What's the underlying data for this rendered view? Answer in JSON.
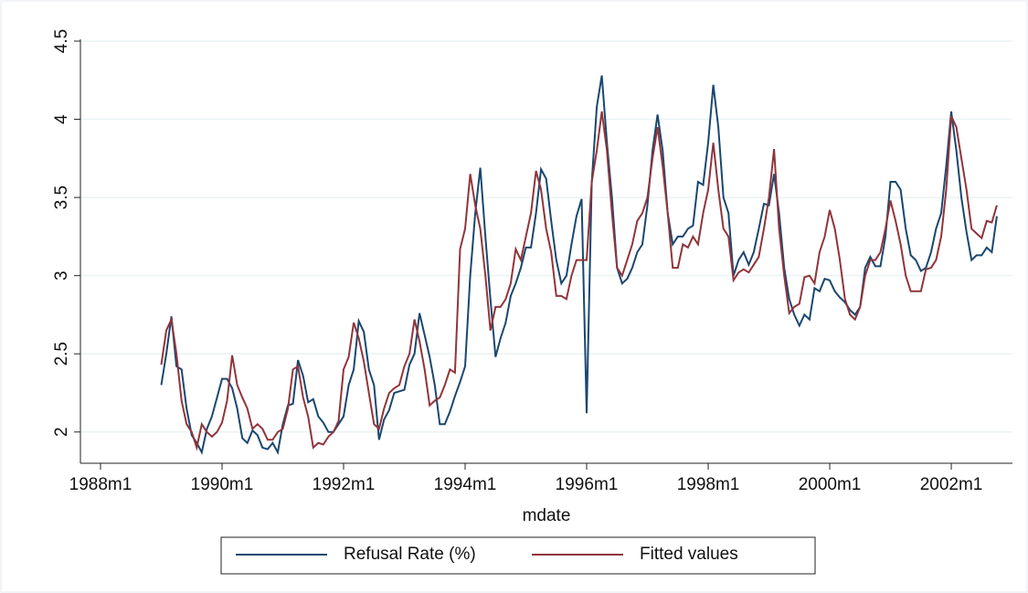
{
  "chart_data": {
    "type": "line",
    "xlabel": "mdate",
    "x": [
      "1989m1",
      "1989m2",
      "1989m3",
      "1989m4",
      "1989m5",
      "1989m6",
      "1989m7",
      "1989m8",
      "1989m9",
      "1989m10",
      "1989m11",
      "1989m12",
      "1990m1",
      "1990m2",
      "1990m3",
      "1990m4",
      "1990m5",
      "1990m6",
      "1990m7",
      "1990m8",
      "1990m9",
      "1990m10",
      "1990m11",
      "1990m12",
      "1991m1",
      "1991m2",
      "1991m3",
      "1991m4",
      "1991m5",
      "1991m6",
      "1991m7",
      "1991m8",
      "1991m9",
      "1991m10",
      "1991m11",
      "1991m12",
      "1992m1",
      "1992m2",
      "1992m3",
      "1992m4",
      "1992m5",
      "1992m6",
      "1992m7",
      "1992m8",
      "1992m9",
      "1992m10",
      "1992m11",
      "1992m12",
      "1993m1",
      "1993m2",
      "1993m3",
      "1993m4",
      "1993m5",
      "1993m6",
      "1993m7",
      "1993m8",
      "1993m9",
      "1993m10",
      "1993m11",
      "1993m12",
      "1994m1",
      "1994m2",
      "1994m3",
      "1994m4",
      "1994m5",
      "1994m6",
      "1994m7",
      "1994m8",
      "1994m9",
      "1994m10",
      "1994m11",
      "1994m12",
      "1995m1",
      "1995m2",
      "1995m3",
      "1995m4",
      "1995m5",
      "1995m6",
      "1995m7",
      "1995m8",
      "1995m9",
      "1995m10",
      "1995m11",
      "1995m12",
      "1996m1",
      "1996m2",
      "1996m3",
      "1996m4",
      "1996m5",
      "1996m6",
      "1996m7",
      "1996m8",
      "1996m9",
      "1996m10",
      "1996m11",
      "1996m12",
      "1997m1",
      "1997m2",
      "1997m3",
      "1997m4",
      "1997m5",
      "1997m6",
      "1997m7",
      "1997m8",
      "1997m9",
      "1997m10",
      "1997m11",
      "1997m12",
      "1998m1",
      "1998m2",
      "1998m3",
      "1998m4",
      "1998m5",
      "1998m6",
      "1998m7",
      "1998m8",
      "1998m9",
      "1998m10",
      "1998m11",
      "1998m12",
      "1999m1",
      "1999m2",
      "1999m3",
      "1999m4",
      "1999m5",
      "1999m6",
      "1999m7",
      "1999m8",
      "1999m9",
      "1999m10",
      "1999m11",
      "1999m12",
      "2000m1",
      "2000m2",
      "2000m3",
      "2000m4",
      "2000m5",
      "2000m6",
      "2000m7",
      "2000m8",
      "2000m9",
      "2000m10",
      "2000m11",
      "2000m12",
      "2001m1",
      "2001m2",
      "2001m3",
      "2001m4",
      "2001m5",
      "2001m6",
      "2001m7",
      "2001m8",
      "2001m9",
      "2001m10",
      "2001m11",
      "2001m12",
      "2002m1",
      "2002m2",
      "2002m3",
      "2002m4",
      "2002m5",
      "2002m6",
      "2002m7",
      "2002m8",
      "2002m9",
      "2002m10"
    ],
    "series": [
      {
        "name": "Refusal Rate (%)",
        "color": "#1a476f",
        "values": [
          2.3,
          2.5,
          2.74,
          2.42,
          2.4,
          2.15,
          1.98,
          1.93,
          1.87,
          2.02,
          2.1,
          2.22,
          2.34,
          2.34,
          2.28,
          2.15,
          1.96,
          1.93,
          2.01,
          1.98,
          1.9,
          1.89,
          1.93,
          1.87,
          2.05,
          2.17,
          2.18,
          2.46,
          2.36,
          2.19,
          2.21,
          2.1,
          2.06,
          2.0,
          2.0,
          2.05,
          2.1,
          2.3,
          2.4,
          2.71,
          2.64,
          2.4,
          2.3,
          1.95,
          2.08,
          2.14,
          2.25,
          2.26,
          2.27,
          2.43,
          2.5,
          2.76,
          2.62,
          2.48,
          2.3,
          2.05,
          2.05,
          2.13,
          2.23,
          2.32,
          2.42,
          3.0,
          3.4,
          3.69,
          3.25,
          2.85,
          2.48,
          2.6,
          2.7,
          2.87,
          2.95,
          3.05,
          3.18,
          3.18,
          3.4,
          3.68,
          3.62,
          3.35,
          3.1,
          2.95,
          3.0,
          3.2,
          3.38,
          3.49,
          2.12,
          3.6,
          4.08,
          4.28,
          3.85,
          3.5,
          3.05,
          2.95,
          2.98,
          3.05,
          3.15,
          3.2,
          3.45,
          3.8,
          4.03,
          3.8,
          3.4,
          3.2,
          3.25,
          3.25,
          3.3,
          3.32,
          3.6,
          3.58,
          3.85,
          4.22,
          3.95,
          3.5,
          3.4,
          3.0,
          3.1,
          3.15,
          3.07,
          3.15,
          3.3,
          3.46,
          3.45,
          3.65,
          3.4,
          3.05,
          2.85,
          2.75,
          2.68,
          2.75,
          2.72,
          2.92,
          2.9,
          2.98,
          2.97,
          2.9,
          2.86,
          2.83,
          2.78,
          2.75,
          2.8,
          3.05,
          3.12,
          3.06,
          3.06,
          3.25,
          3.6,
          3.6,
          3.55,
          3.3,
          3.13,
          3.1,
          3.03,
          3.05,
          3.15,
          3.3,
          3.4,
          3.7,
          4.05,
          3.8,
          3.5,
          3.28,
          3.1,
          3.13,
          3.13,
          3.18,
          3.15,
          3.38
        ]
      },
      {
        "name": "Fitted values",
        "color": "#90353b",
        "values": [
          2.43,
          2.65,
          2.72,
          2.5,
          2.2,
          2.05,
          2.0,
          1.9,
          2.05,
          2.0,
          1.97,
          2.0,
          2.06,
          2.2,
          2.49,
          2.3,
          2.22,
          2.15,
          2.02,
          2.05,
          2.02,
          1.95,
          1.95,
          2.0,
          2.02,
          2.15,
          2.4,
          2.42,
          2.22,
          2.1,
          1.9,
          1.93,
          1.92,
          1.97,
          2.0,
          2.07,
          2.4,
          2.48,
          2.7,
          2.6,
          2.45,
          2.25,
          2.05,
          2.02,
          2.15,
          2.25,
          2.28,
          2.3,
          2.42,
          2.5,
          2.72,
          2.58,
          2.4,
          2.17,
          2.2,
          2.22,
          2.3,
          2.4,
          2.38,
          3.17,
          3.3,
          3.65,
          3.45,
          3.3,
          3.0,
          2.65,
          2.8,
          2.8,
          2.85,
          2.95,
          3.17,
          3.1,
          3.25,
          3.4,
          3.67,
          3.55,
          3.3,
          3.15,
          2.87,
          2.87,
          2.85,
          3.0,
          3.1,
          3.1,
          3.1,
          3.6,
          3.8,
          4.05,
          3.8,
          3.4,
          3.05,
          3.0,
          3.1,
          3.2,
          3.35,
          3.4,
          3.5,
          3.75,
          3.95,
          3.7,
          3.4,
          3.05,
          3.05,
          3.2,
          3.18,
          3.25,
          3.2,
          3.4,
          3.55,
          3.85,
          3.55,
          3.3,
          3.25,
          2.97,
          3.02,
          3.04,
          3.02,
          3.07,
          3.12,
          3.3,
          3.5,
          3.81,
          3.3,
          3.0,
          2.76,
          2.8,
          2.82,
          2.99,
          3.0,
          2.95,
          3.15,
          3.25,
          3.42,
          3.3,
          3.1,
          2.85,
          2.75,
          2.72,
          2.8,
          3.0,
          3.1,
          3.1,
          3.15,
          3.3,
          3.48,
          3.35,
          3.2,
          3.0,
          2.9,
          2.9,
          2.9,
          3.04,
          3.05,
          3.1,
          3.25,
          3.55,
          4.02,
          3.95,
          3.75,
          3.55,
          3.3,
          3.27,
          3.24,
          3.35,
          3.34,
          3.45
        ]
      }
    ],
    "xlim": [
      "1988m1",
      "2002m12"
    ],
    "xticks": [
      "1988m1",
      "1990m1",
      "1992m1",
      "1994m1",
      "1996m1",
      "1998m1",
      "2000m1",
      "2002m1"
    ],
    "ylim": [
      1.8,
      4.5
    ],
    "yticks": [
      2,
      2.5,
      3,
      3.5,
      4,
      4.5
    ],
    "grid": true
  }
}
